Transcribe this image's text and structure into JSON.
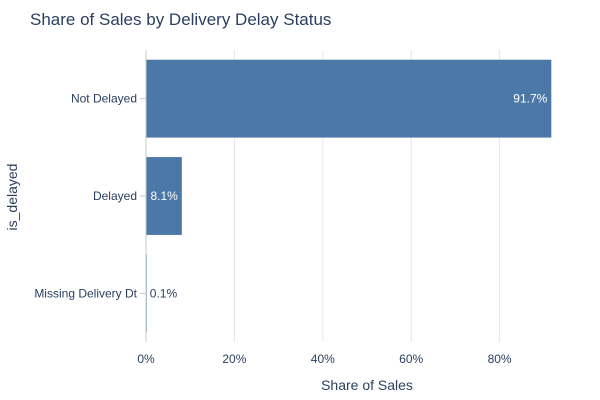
{
  "chart_data": {
    "type": "bar",
    "orientation": "horizontal",
    "title": "Share of Sales by Delivery Delay Status",
    "xlabel": "Share of Sales",
    "ylabel": "is_delayed",
    "categories": [
      "Not Delayed",
      "Delayed",
      "Missing Delivery Dt"
    ],
    "values": [
      91.7,
      8.1,
      0.1
    ],
    "data_labels": [
      "91.7%",
      "8.1%",
      "0.1%"
    ],
    "xlim": [
      0,
      100
    ],
    "xticks": [
      0,
      20,
      40,
      60,
      80
    ],
    "xtick_labels": [
      "0%",
      "20%",
      "40%",
      "60%",
      "80%"
    ],
    "grid": true,
    "legend": "none",
    "colors": {
      "bar": "#4c78a8",
      "grid": "#e6e6e6",
      "axis": "#c8c8c8",
      "text": "#2a3f5f",
      "label_inside": "#ffffff"
    }
  }
}
